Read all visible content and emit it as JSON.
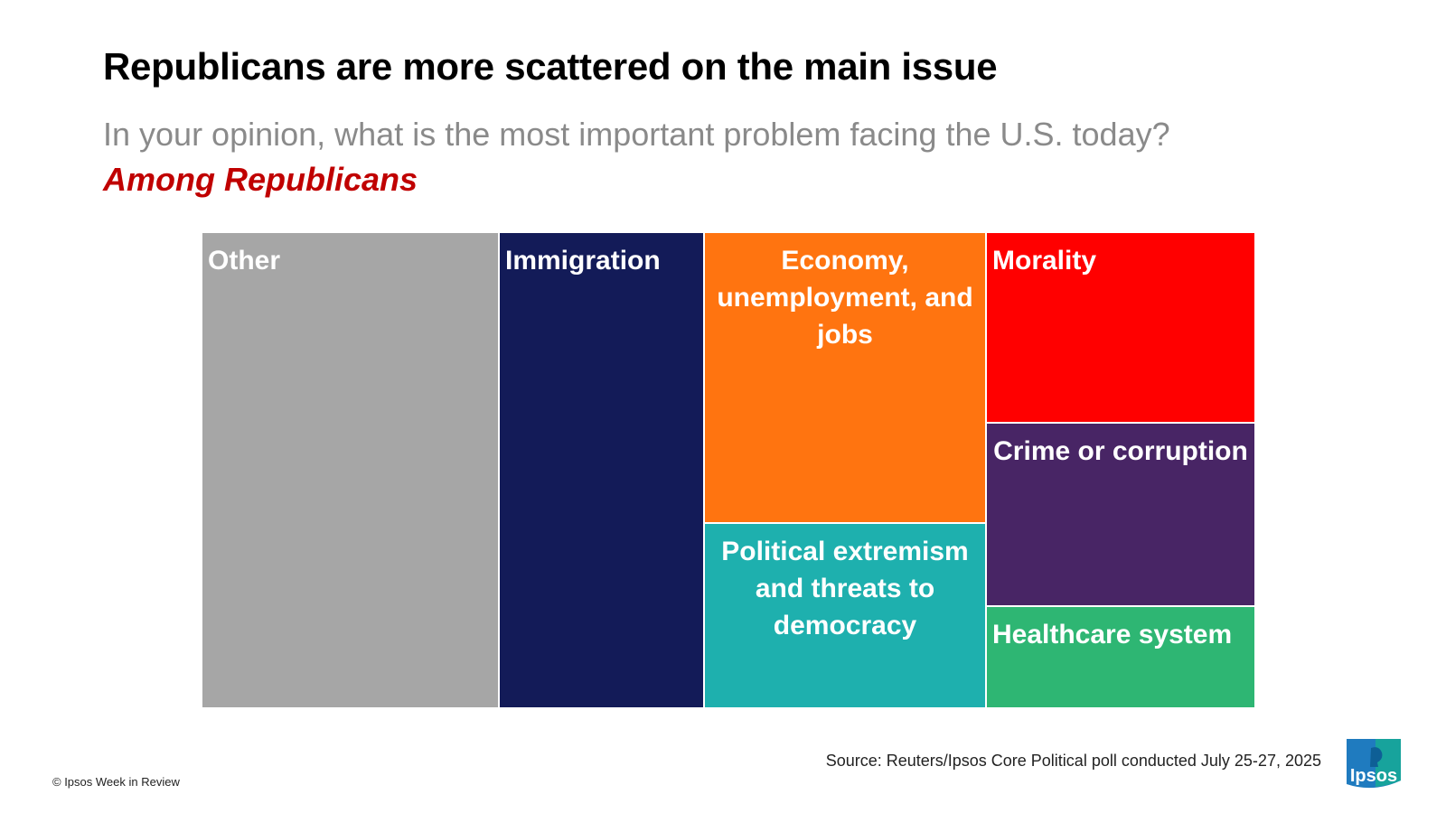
{
  "header": {
    "title": "Republicans are more scattered on the main issue",
    "subtitle": "In your opinion, what is the most important problem facing the U.S. today?",
    "group": "Among Republicans"
  },
  "chart_data": {
    "type": "treemap",
    "items": [
      {
        "label": "Other",
        "color": "#a6a6a6",
        "align": "left"
      },
      {
        "label": "Immigration",
        "color": "#131b58",
        "align": "left"
      },
      {
        "label": "Economy, unemployment, and jobs",
        "color": "#ff7410",
        "align": "center"
      },
      {
        "label": "Political extremism and threats to democracy",
        "color": "#1eb0ae",
        "align": "center"
      },
      {
        "label": "Morality",
        "color": "#ff0000",
        "align": "left"
      },
      {
        "label": "Crime or corruption",
        "color": "#482565",
        "align": "center"
      },
      {
        "label": "Healthcare system",
        "color": "#2eb673",
        "align": "left"
      }
    ]
  },
  "footer": {
    "source": "Source: Reuters/Ipsos Core Political poll conducted July 25-27, 2025",
    "copyright": "© Ipsos Week in Review",
    "logo_text": "Ipsos"
  }
}
